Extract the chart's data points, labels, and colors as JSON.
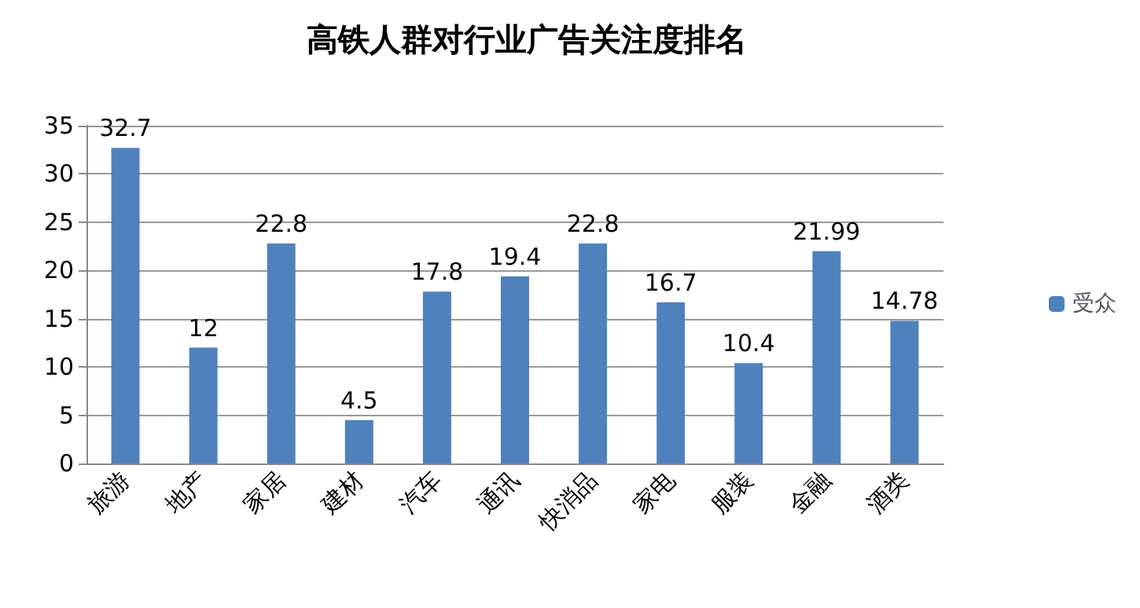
{
  "chart_data": {
    "type": "bar",
    "title": "高铁人群对行业广告关注度排名",
    "categories": [
      "旅游",
      "地产",
      "家居",
      "建材",
      "汽车",
      "通讯",
      "快消品",
      "家电",
      "服装",
      "金融",
      "酒类"
    ],
    "series": [
      {
        "name": "受众",
        "color": "#4f81bd",
        "values": [
          32.7,
          12,
          22.8,
          4.5,
          17.8,
          19.4,
          22.8,
          16.7,
          10.4,
          21.99,
          14.78
        ]
      }
    ],
    "ylim": [
      0,
      35
    ],
    "yticks": [
      0,
      5,
      10,
      15,
      20,
      25,
      30,
      35
    ],
    "grid": "y",
    "legend": "right",
    "data_labels": true
  }
}
